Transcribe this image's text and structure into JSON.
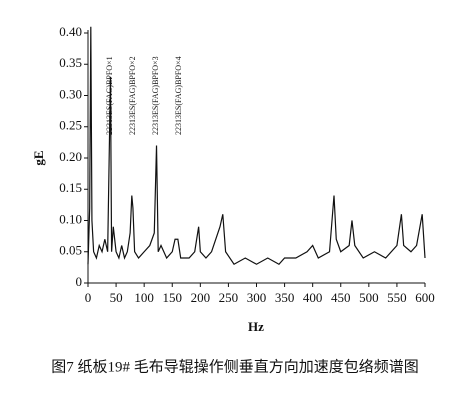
{
  "chart_data": {
    "type": "line",
    "x_label": "Hz",
    "y_label": "gE",
    "caption": "图7  纸板19# 毛布导辊操作侧垂直方向加速度包络频谱图",
    "annotations": [
      "22313ES(FAG)BPFO×1",
      "22313ES(FAG)BPFO×2",
      "22313ES(FAG)BPFO×3",
      "22313ES(FAG)BPFO×4"
    ],
    "xlim": [
      0,
      600
    ],
    "xticks": [
      0,
      50,
      100,
      150,
      200,
      250,
      300,
      350,
      400,
      450,
      500,
      550,
      600
    ],
    "ylim": [
      0,
      0.4
    ],
    "yticks": [
      0,
      0.05,
      {
        "value": 0.1,
        "label": "0.10"
      },
      0.15,
      {
        "value": 0.2,
        "label": "0.20"
      },
      0.25,
      {
        "value": 0.3,
        "label": "0.30"
      },
      0.35,
      {
        "value": 0.4,
        "label": "0.40"
      }
    ],
    "series": [
      {
        "color": "#111111",
        "x": [
          0,
          3,
          5,
          7,
          10,
          15,
          20,
          25,
          30,
          35,
          40,
          42,
          45,
          50,
          55,
          60,
          65,
          70,
          75,
          78,
          80,
          83,
          90,
          100,
          110,
          118,
          122,
          125,
          130,
          140,
          150,
          155,
          160,
          165,
          180,
          190,
          197,
          200,
          210,
          220,
          235,
          240,
          245,
          260,
          280,
          300,
          320,
          340,
          350,
          370,
          390,
          400,
          410,
          430,
          438,
          442,
          450,
          465,
          470,
          475,
          490,
          510,
          530,
          550,
          558,
          562,
          575,
          585,
          595,
          600
        ],
        "values": [
          0.03,
          0.12,
          0.41,
          0.1,
          0.05,
          0.04,
          0.06,
          0.05,
          0.07,
          0.05,
          0.33,
          0.05,
          0.09,
          0.05,
          0.04,
          0.06,
          0.04,
          0.05,
          0.08,
          0.14,
          0.12,
          0.05,
          0.04,
          0.05,
          0.06,
          0.08,
          0.22,
          0.05,
          0.06,
          0.04,
          0.05,
          0.07,
          0.07,
          0.04,
          0.04,
          0.05,
          0.09,
          0.05,
          0.04,
          0.05,
          0.09,
          0.11,
          0.05,
          0.03,
          0.04,
          0.03,
          0.04,
          0.03,
          0.04,
          0.04,
          0.05,
          0.06,
          0.04,
          0.05,
          0.14,
          0.07,
          0.05,
          0.06,
          0.1,
          0.06,
          0.04,
          0.05,
          0.04,
          0.06,
          0.11,
          0.06,
          0.05,
          0.06,
          0.11,
          0.04
        ]
      }
    ]
  }
}
